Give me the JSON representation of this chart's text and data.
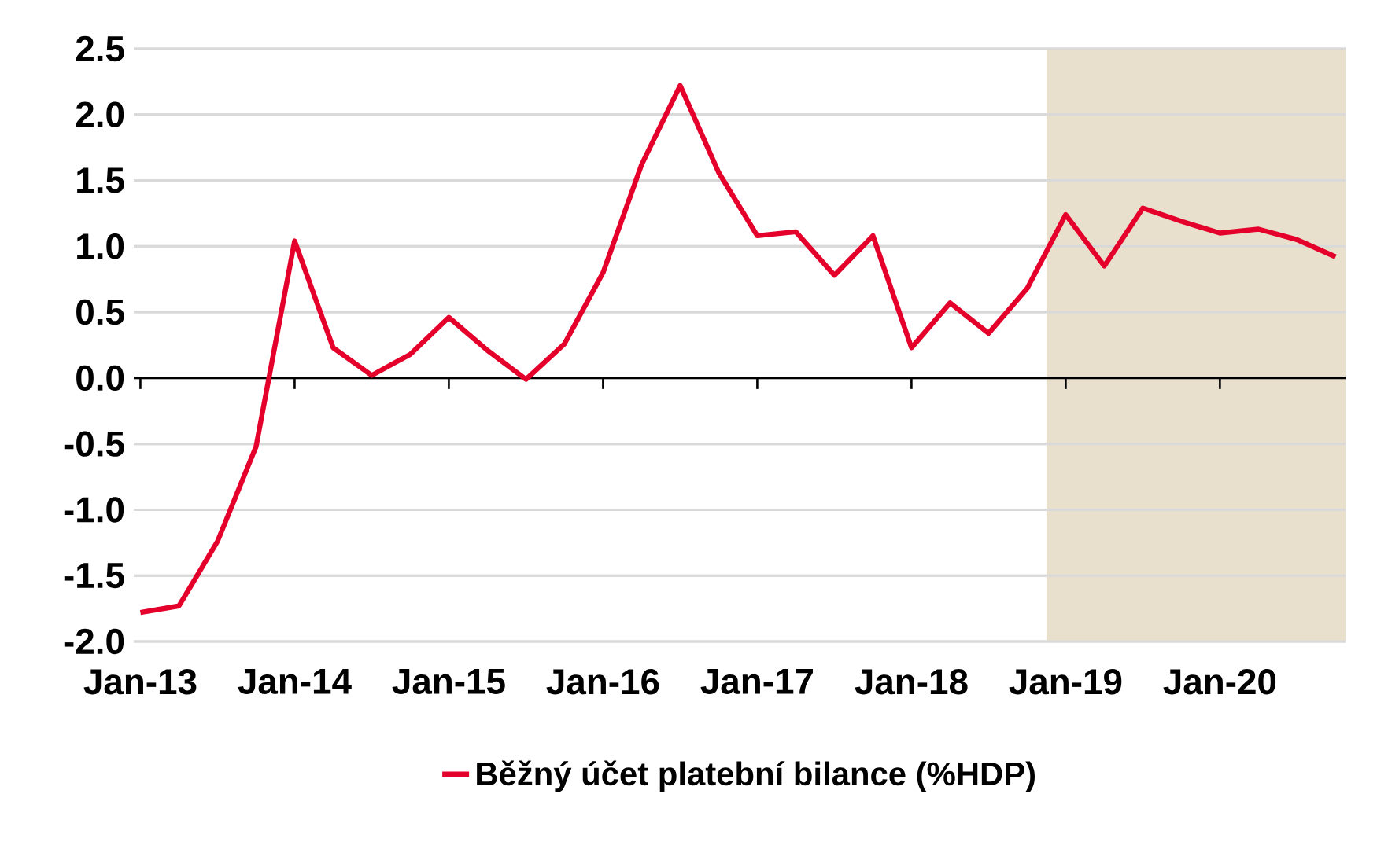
{
  "chart_data": {
    "type": "line",
    "x": [
      "2013-01",
      "2013-04",
      "2013-07",
      "2013-10",
      "2014-01",
      "2014-04",
      "2014-07",
      "2014-10",
      "2015-01",
      "2015-04",
      "2015-07",
      "2015-10",
      "2016-01",
      "2016-04",
      "2016-07",
      "2016-10",
      "2017-01",
      "2017-04",
      "2017-07",
      "2017-10",
      "2018-01",
      "2018-04",
      "2018-07",
      "2018-10",
      "2019-01",
      "2019-04",
      "2019-07",
      "2019-10",
      "2020-01",
      "2020-04",
      "2020-07",
      "2020-10"
    ],
    "series": [
      {
        "name": "Běžný účet platební bilance (%HDP)",
        "color": "#e4002b",
        "values": [
          -1.78,
          -1.73,
          -1.24,
          -0.52,
          1.04,
          0.23,
          0.02,
          0.18,
          0.46,
          0.21,
          -0.01,
          0.26,
          0.8,
          1.62,
          2.22,
          1.56,
          1.08,
          1.11,
          0.78,
          1.08,
          0.23,
          0.57,
          0.34,
          0.68,
          1.24,
          0.85,
          1.29,
          1.19,
          1.1,
          1.13,
          1.05,
          0.92
        ]
      }
    ],
    "xlim": [
      "2012-12-16",
      "2020-10-25"
    ],
    "xticks": [
      {
        "value": "2013-01",
        "label": "Jan-13"
      },
      {
        "value": "2014-01",
        "label": "Jan-14"
      },
      {
        "value": "2015-01",
        "label": "Jan-15"
      },
      {
        "value": "2016-01",
        "label": "Jan-16"
      },
      {
        "value": "2017-01",
        "label": "Jan-17"
      },
      {
        "value": "2018-01",
        "label": "Jan-18"
      },
      {
        "value": "2019-01",
        "label": "Jan-19"
      },
      {
        "value": "2020-01",
        "label": "Jan-20"
      }
    ],
    "ylim": [
      -2.0,
      2.5
    ],
    "yticks": [
      {
        "value": -2.0,
        "label": "-2.0"
      },
      {
        "value": -1.5,
        "label": "-1.5"
      },
      {
        "value": -1.0,
        "label": "-1.0"
      },
      {
        "value": -0.5,
        "label": "-0.5"
      },
      {
        "value": 0.0,
        "label": "0.0"
      },
      {
        "value": 0.5,
        "label": "0.5"
      },
      {
        "value": 1.0,
        "label": "1.0"
      },
      {
        "value": 1.5,
        "label": "1.5"
      },
      {
        "value": 2.0,
        "label": "2.0"
      },
      {
        "value": 2.5,
        "label": "2.5"
      }
    ],
    "bands": [
      {
        "axis": "x",
        "from": "2018-11-16",
        "to": "2020-10-25",
        "color": "#e8e0cc"
      }
    ],
    "grid": "y",
    "legend": "bottom",
    "marker": "none",
    "line_style": "solid"
  }
}
